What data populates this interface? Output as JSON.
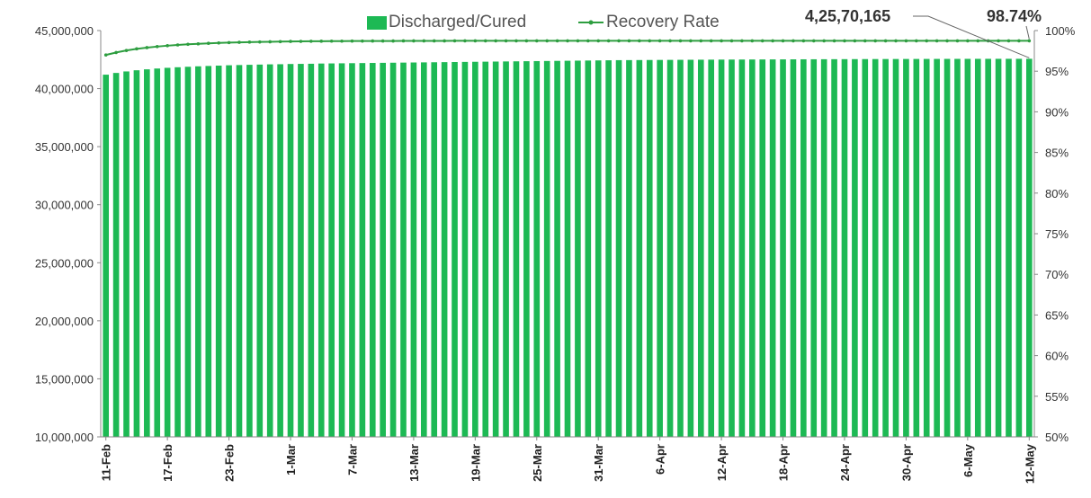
{
  "chart_data": {
    "type": "bar",
    "title": "",
    "xlabel": "",
    "ylabel": "",
    "ylabel_right": "",
    "ylim": [
      10000000,
      45000000
    ],
    "y2lim": [
      0.5,
      1.0
    ],
    "legend_position": "top-center",
    "grid": false,
    "colors": {
      "bar": "#1db954",
      "line": "#2e9e40"
    },
    "y_ticks": [
      "10,000,000",
      "15,000,000",
      "20,000,000",
      "25,000,000",
      "30,000,000",
      "35,000,000",
      "40,000,000",
      "45,000,000"
    ],
    "y2_ticks": [
      "50%",
      "55%",
      "60%",
      "65%",
      "70%",
      "75%",
      "80%",
      "85%",
      "90%",
      "95%",
      "100%"
    ],
    "x_tick_labels": [
      "11-Feb",
      "17-Feb",
      "23-Feb",
      "1-Mar",
      "7-Mar",
      "13-Mar",
      "19-Mar",
      "25-Mar",
      "31-Mar",
      "6-Apr",
      "12-Apr",
      "18-Apr",
      "24-Apr",
      "30-Apr",
      "6-May",
      "12-May"
    ],
    "x_start": "2022-02-11",
    "n_days": 91,
    "series": [
      {
        "name": "Discharged/Cured",
        "type": "bar",
        "axis": "left",
        "values": [
          41200000,
          41350000,
          41480000,
          41580000,
          41660000,
          41730000,
          41790000,
          41840000,
          41880000,
          41920000,
          41950000,
          41980000,
          42010000,
          42030000,
          42050000,
          42070000,
          42090000,
          42100000,
          42120000,
          42130000,
          42140000,
          42160000,
          42170000,
          42180000,
          42190000,
          42200000,
          42210000,
          42220000,
          42230000,
          42240000,
          42250000,
          42260000,
          42270000,
          42280000,
          42290000,
          42300000,
          42310000,
          42320000,
          42330000,
          42340000,
          42350000,
          42360000,
          42370000,
          42380000,
          42390000,
          42400000,
          42410000,
          42420000,
          42430000,
          42440000,
          42450000,
          42455000,
          42460000,
          42465000,
          42470000,
          42475000,
          42480000,
          42485000,
          42490000,
          42495000,
          42500000,
          42503000,
          42506000,
          42509000,
          42512000,
          42515000,
          42518000,
          42521000,
          42524000,
          42527000,
          42530000,
          42533000,
          42536000,
          42539000,
          42542000,
          42545000,
          42548000,
          42550000,
          42552000,
          42554000,
          42556000,
          42558000,
          42560000,
          42562000,
          42563000,
          42564000,
          42565000,
          42566000,
          42567000,
          42568000,
          42570165
        ]
      },
      {
        "name": "Recovery Rate",
        "type": "line",
        "axis": "right",
        "values": [
          0.97,
          0.973,
          0.9755,
          0.9775,
          0.979,
          0.9803,
          0.9814,
          0.9823,
          0.9831,
          0.9837,
          0.9843,
          0.9848,
          0.9852,
          0.9855,
          0.9858,
          0.986,
          0.9862,
          0.9864,
          0.9866,
          0.9867,
          0.9868,
          0.9869,
          0.987,
          0.987,
          0.9871,
          0.9871,
          0.9872,
          0.9872,
          0.9872,
          0.9873,
          0.9873,
          0.9873,
          0.9873,
          0.9873,
          0.9874,
          0.9874,
          0.9874,
          0.9874,
          0.9874,
          0.9874,
          0.9874,
          0.9874,
          0.9874,
          0.9874,
          0.9874,
          0.9874,
          0.9874,
          0.9874,
          0.9874,
          0.9874,
          0.9874,
          0.9874,
          0.9874,
          0.9874,
          0.9874,
          0.9874,
          0.9874,
          0.9874,
          0.9874,
          0.9874,
          0.9874,
          0.9874,
          0.9874,
          0.9874,
          0.9874,
          0.9874,
          0.9874,
          0.9874,
          0.9874,
          0.9874,
          0.9874,
          0.9874,
          0.9874,
          0.9874,
          0.9874,
          0.9874,
          0.9874,
          0.9874,
          0.9874,
          0.9874,
          0.9874,
          0.9874,
          0.9874,
          0.9874,
          0.9874,
          0.9874,
          0.9874,
          0.9874,
          0.9874,
          0.9874,
          0.9874
        ]
      }
    ],
    "annotations": [
      {
        "text": "4,25,70,165",
        "target": "last-bar"
      },
      {
        "text": "98.74%",
        "target": "last-line-point"
      }
    ]
  }
}
